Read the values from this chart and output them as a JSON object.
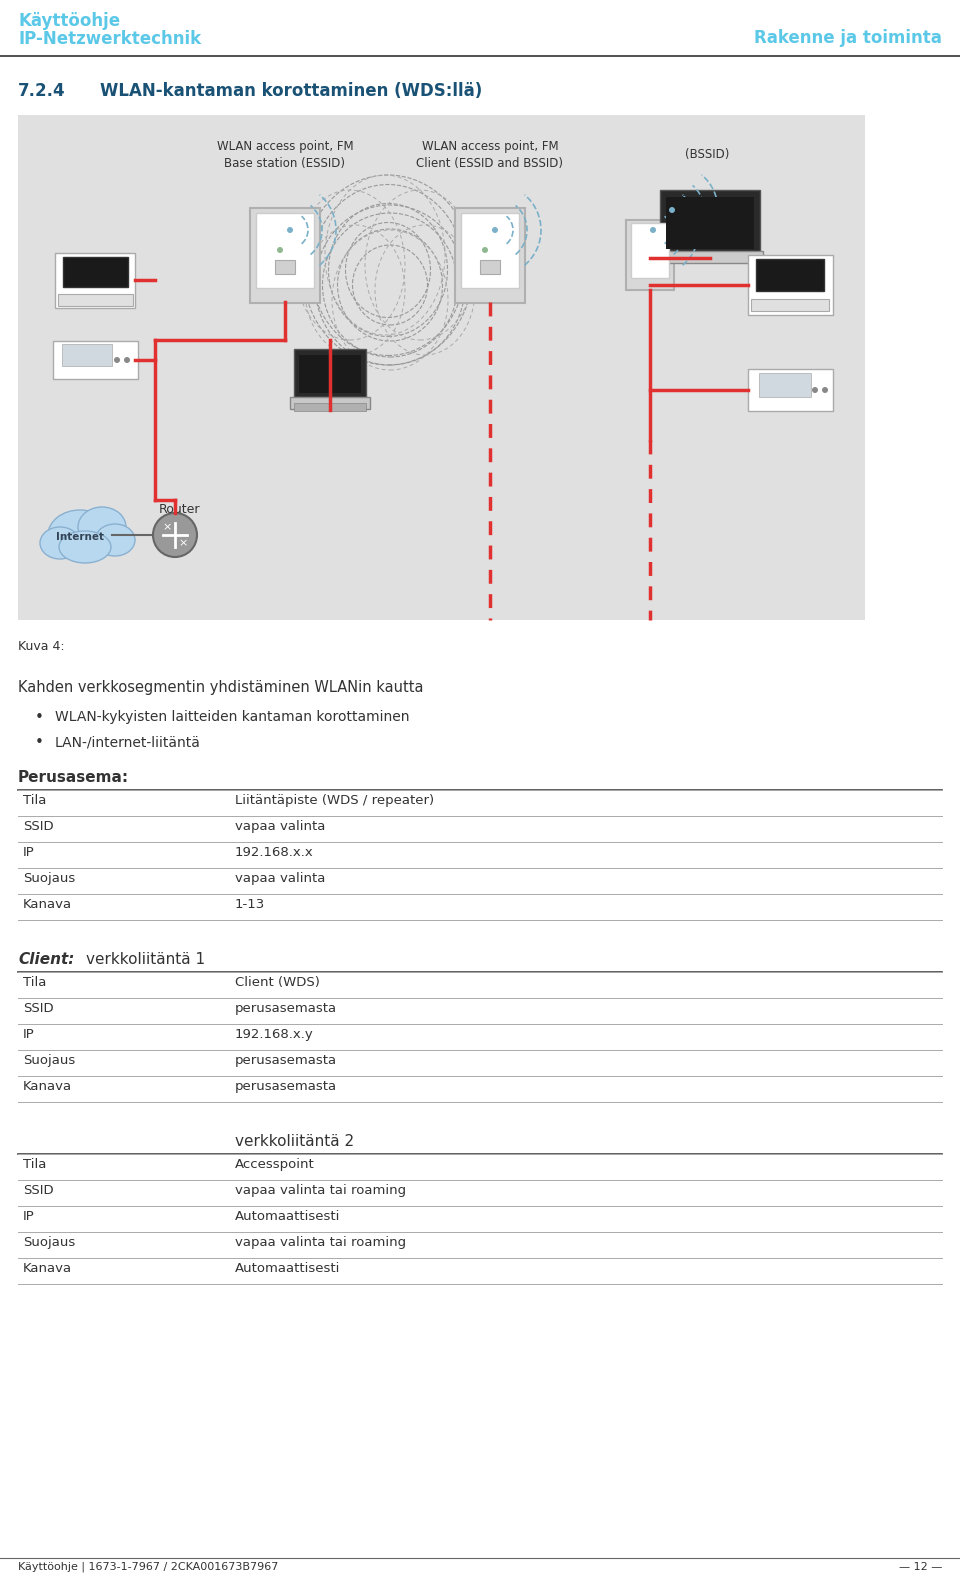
{
  "header_title1": "Käyttöohje",
  "header_title2": "IP-Netzwerktechnik",
  "header_right": "Rakenne ja toiminta",
  "header_color": "#5bc8e8",
  "section_number": "7.2.4",
  "section_title": "WLAN-kantaman korottaminen (WDS:llä)",
  "label_base": "WLAN access point, FM\nBase station (ESSID)",
  "label_client": "WLAN access point, FM\nClient (ESSID and BSSID)",
  "label_bssid": "(BSSID)",
  "label_router": "Router",
  "label_internet": "Internet",
  "caption": "Kuva 4:",
  "body_text": "Kahden verkkosegmentin yhdistäminen WLANin kautta",
  "bullet1": "WLAN-kykyisten laitteiden kantaman korottaminen",
  "bullet2": "LAN-/internet-liitäntä",
  "perusasema_title": "Perusasema:",
  "perusasema_rows": [
    [
      "Tila",
      "Liitäntäpiste (WDS / repeater)"
    ],
    [
      "SSID",
      "vapaa valinta"
    ],
    [
      "IP",
      "192.168.x.x"
    ],
    [
      "Suojaus",
      "vapaa valinta"
    ],
    [
      "Kanava",
      "1-13"
    ]
  ],
  "client_title": "Client:",
  "client_subtitle": "verkkoliitäntä 1",
  "client_rows": [
    [
      "Tila",
      "Client (WDS)"
    ],
    [
      "SSID",
      "perusasemasta"
    ],
    [
      "IP",
      "192.168.x.y"
    ],
    [
      "Suojaus",
      "perusasemasta"
    ],
    [
      "Kanava",
      "perusasemasta"
    ]
  ],
  "verk2_subtitle": "verkkoliitäntä 2",
  "verk2_rows": [
    [
      "Tila",
      "Accesspoint"
    ],
    [
      "SSID",
      "vapaa valinta tai roaming"
    ],
    [
      "IP",
      "Automaattisesti"
    ],
    [
      "Suojaus",
      "vapaa valinta tai roaming"
    ],
    [
      "Kanava",
      "Automaattisesti"
    ]
  ],
  "footer_left": "Käyttöohje | 1673-1-7967 / 2CKA001673B7967",
  "footer_right": "— 12 —",
  "bg_color": "#ffffff",
  "diagram_bg": "#e0e0e0",
  "red_color": "#e03030",
  "dark_gray": "#333333",
  "mid_gray": "#666666",
  "light_blue": "#5bc8e8",
  "device_bg": "#f0f0f0",
  "device_border": "#aaaaaa"
}
